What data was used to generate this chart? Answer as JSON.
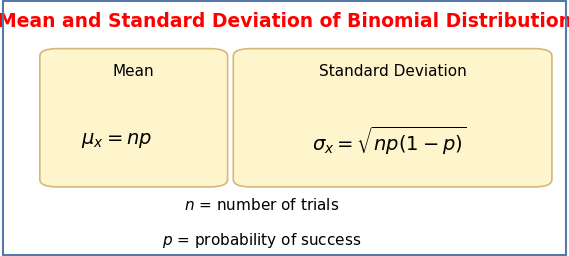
{
  "title": "Mean and Standard Deviation of Binomial Distribution",
  "title_color": "#FF0000",
  "title_fontsize": 13.5,
  "box_facecolor": "#FFF5CC",
  "box_edgecolor": "#D4B87A",
  "background_color": "#FFFFFF",
  "border_color": "#5577AA",
  "mean_label": "Mean",
  "mean_formula": "$\\mu_x = np$",
  "std_label": "Standard Deviation",
  "std_formula": "$\\sigma_x = \\sqrt{np(1-p)}$",
  "note_line1": "$n$ = number of trials",
  "note_line2": "$p$ = probability of success",
  "label_fontsize": 11,
  "formula_fontsize": 14,
  "note_fontsize": 11
}
